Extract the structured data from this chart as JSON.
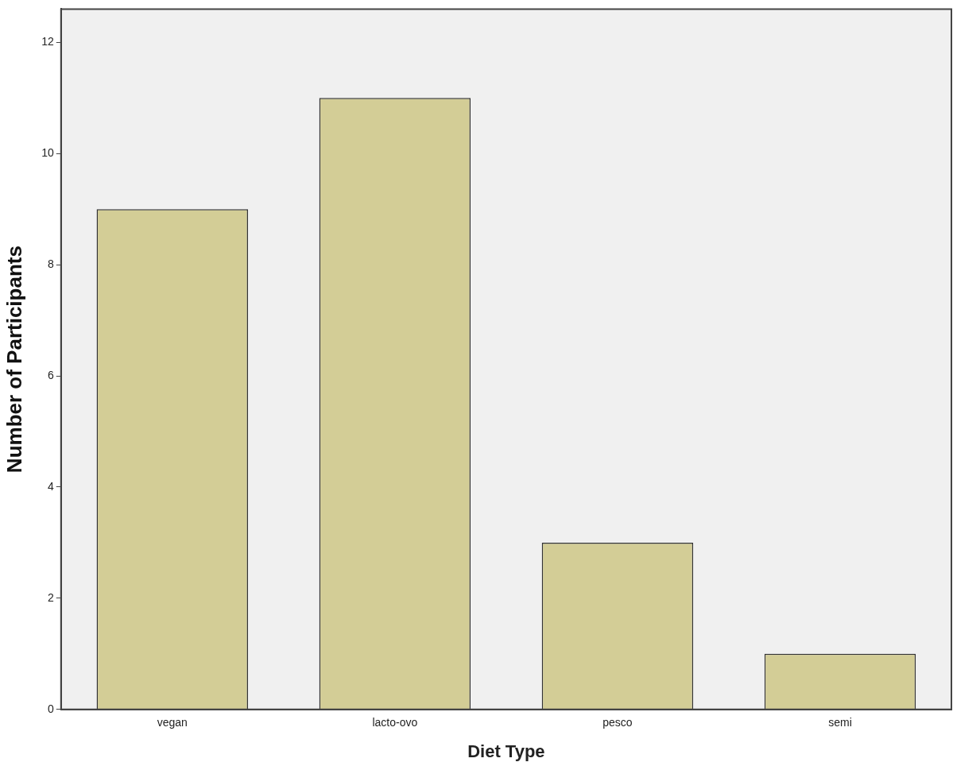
{
  "chart_data": {
    "type": "bar",
    "xlabel": "Diet Type",
    "ylabel": "Number of Participants",
    "categories": [
      "vegan",
      "lacto-ovo",
      "pesco",
      "semi"
    ],
    "values": [
      9,
      11,
      3,
      1
    ],
    "color": "#d3cd96",
    "ylim": [
      0,
      12.6
    ],
    "yticks": [
      0,
      2,
      4,
      6,
      8,
      10,
      12
    ],
    "grid": false,
    "legend": false
  }
}
